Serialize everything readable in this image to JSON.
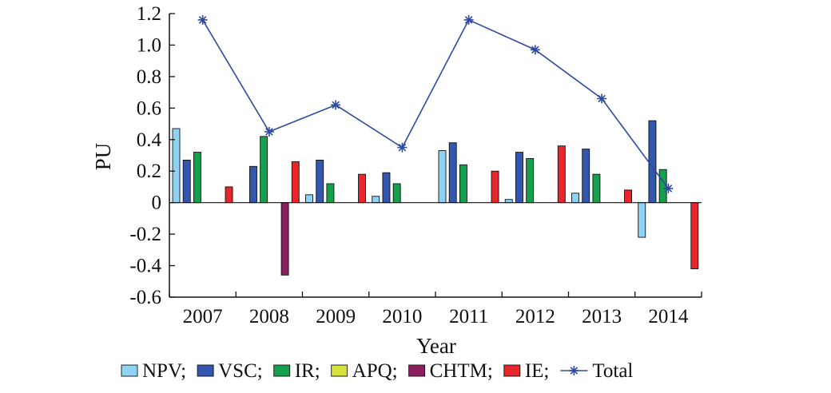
{
  "chart_data": {
    "type": "bar",
    "xlabel": "Year",
    "ylabel": "PU",
    "ylim": [
      -0.6,
      1.2
    ],
    "yticks": [
      "1.2",
      "1.0",
      "0.8",
      "0.6",
      "0.4",
      "0.2",
      "0",
      "-0.2",
      "-0.4",
      "-0.6"
    ],
    "ytick_values": [
      1.2,
      1.0,
      0.8,
      0.6,
      0.4,
      0.2,
      0,
      -0.2,
      -0.4,
      -0.6
    ],
    "categories": [
      "2007",
      "2008",
      "2009",
      "2010",
      "2011",
      "2012",
      "2013",
      "2014"
    ],
    "grid": false,
    "legend_position": "bottom",
    "series": [
      {
        "name": "NPV;",
        "color": "#8fd3f4",
        "values": [
          0.47,
          0.0,
          0.05,
          0.04,
          0.33,
          0.02,
          0.06,
          -0.22
        ]
      },
      {
        "name": "VSC;",
        "color": "#3357ae",
        "values": [
          0.27,
          0.23,
          0.27,
          0.19,
          0.38,
          0.32,
          0.34,
          0.52
        ]
      },
      {
        "name": "IR;",
        "color": "#15a04e",
        "values": [
          0.32,
          0.42,
          0.12,
          0.12,
          0.24,
          0.28,
          0.18,
          0.21
        ]
      },
      {
        "name": "APQ;",
        "color": "#d6e23a",
        "values": [
          0.0,
          0.0,
          0.0,
          0.0,
          0.0,
          0.0,
          0.0,
          0.0
        ]
      },
      {
        "name": "CHTM;",
        "color": "#8b1e5e",
        "values": [
          0.0,
          -0.46,
          0.0,
          0.0,
          0.0,
          0.0,
          0.0,
          0.0
        ]
      },
      {
        "name": "IE;",
        "color": "#e8262b",
        "values": [
          0.1,
          0.26,
          0.18,
          0.0,
          0.2,
          0.36,
          0.08,
          -0.42
        ]
      }
    ],
    "line_series": {
      "name": "Total",
      "color": "#2f4a9e",
      "marker": "asterisk",
      "values": [
        1.16,
        0.45,
        0.62,
        0.35,
        1.16,
        0.97,
        0.66,
        0.09
      ]
    }
  }
}
